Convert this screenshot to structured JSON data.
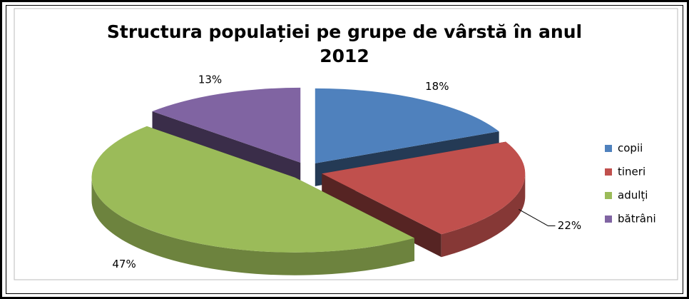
{
  "chart_data": {
    "type": "pie",
    "title": "Structura populației pe grupe de vârstă în anul 2012",
    "categories": [
      "copii",
      "tineri",
      "adulți",
      "bătrâni"
    ],
    "values": [
      18,
      22,
      47,
      13
    ],
    "value_labels": [
      "18%",
      "22%",
      "47%",
      "13%"
    ],
    "colors": [
      "#4f81bd",
      "#c0504d",
      "#9bbb59",
      "#8064a2"
    ],
    "legend": "right"
  }
}
